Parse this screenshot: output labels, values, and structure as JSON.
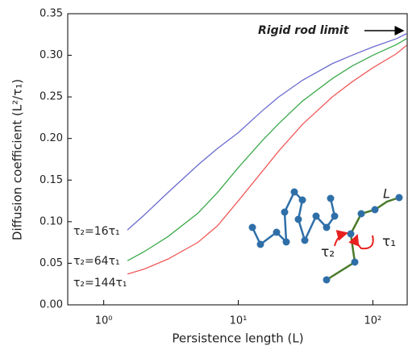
{
  "chart_data": {
    "type": "line",
    "x_label": "Persistence length (L)",
    "y_label": "Diffusion coefficient (L²/τ₁)",
    "annotations": [
      "Rigid rod limit",
      "L",
      "τ₂",
      "τ₁"
    ],
    "xscale": "log",
    "xlim": [
      0.54,
      180
    ],
    "xticks": [
      {
        "value": 1,
        "label": "10⁰"
      },
      {
        "value": 10,
        "label": "10¹"
      },
      {
        "value": 100,
        "label": "10²"
      }
    ],
    "ylim": [
      0,
      0.35
    ],
    "yticks": [
      0,
      0.05,
      0.1,
      0.15,
      0.2,
      0.25,
      0.3,
      0.35
    ],
    "grid": false,
    "x": [
      1.5,
      2,
      3,
      5,
      7,
      10,
      15,
      20,
      30,
      50,
      70,
      100,
      150,
      178
    ],
    "series": [
      {
        "name": "τ₂=16τ₁",
        "color": "#6b6bd0",
        "values": [
          0.09,
          0.108,
          0.135,
          0.168,
          0.188,
          0.207,
          0.233,
          0.25,
          0.27,
          0.29,
          0.3,
          0.31,
          0.32,
          0.326
        ]
      },
      {
        "name": "τ₂=64τ₁",
        "color": "#3aaa4a",
        "values": [
          0.053,
          0.064,
          0.082,
          0.11,
          0.135,
          0.165,
          0.197,
          0.218,
          0.245,
          0.272,
          0.287,
          0.3,
          0.313,
          0.32
        ]
      },
      {
        "name": "τ₂=144τ₁",
        "color": "#f05a5a",
        "values": [
          0.037,
          0.043,
          0.055,
          0.075,
          0.095,
          0.125,
          0.16,
          0.185,
          0.217,
          0.25,
          0.268,
          0.285,
          0.302,
          0.312
        ]
      }
    ]
  }
}
